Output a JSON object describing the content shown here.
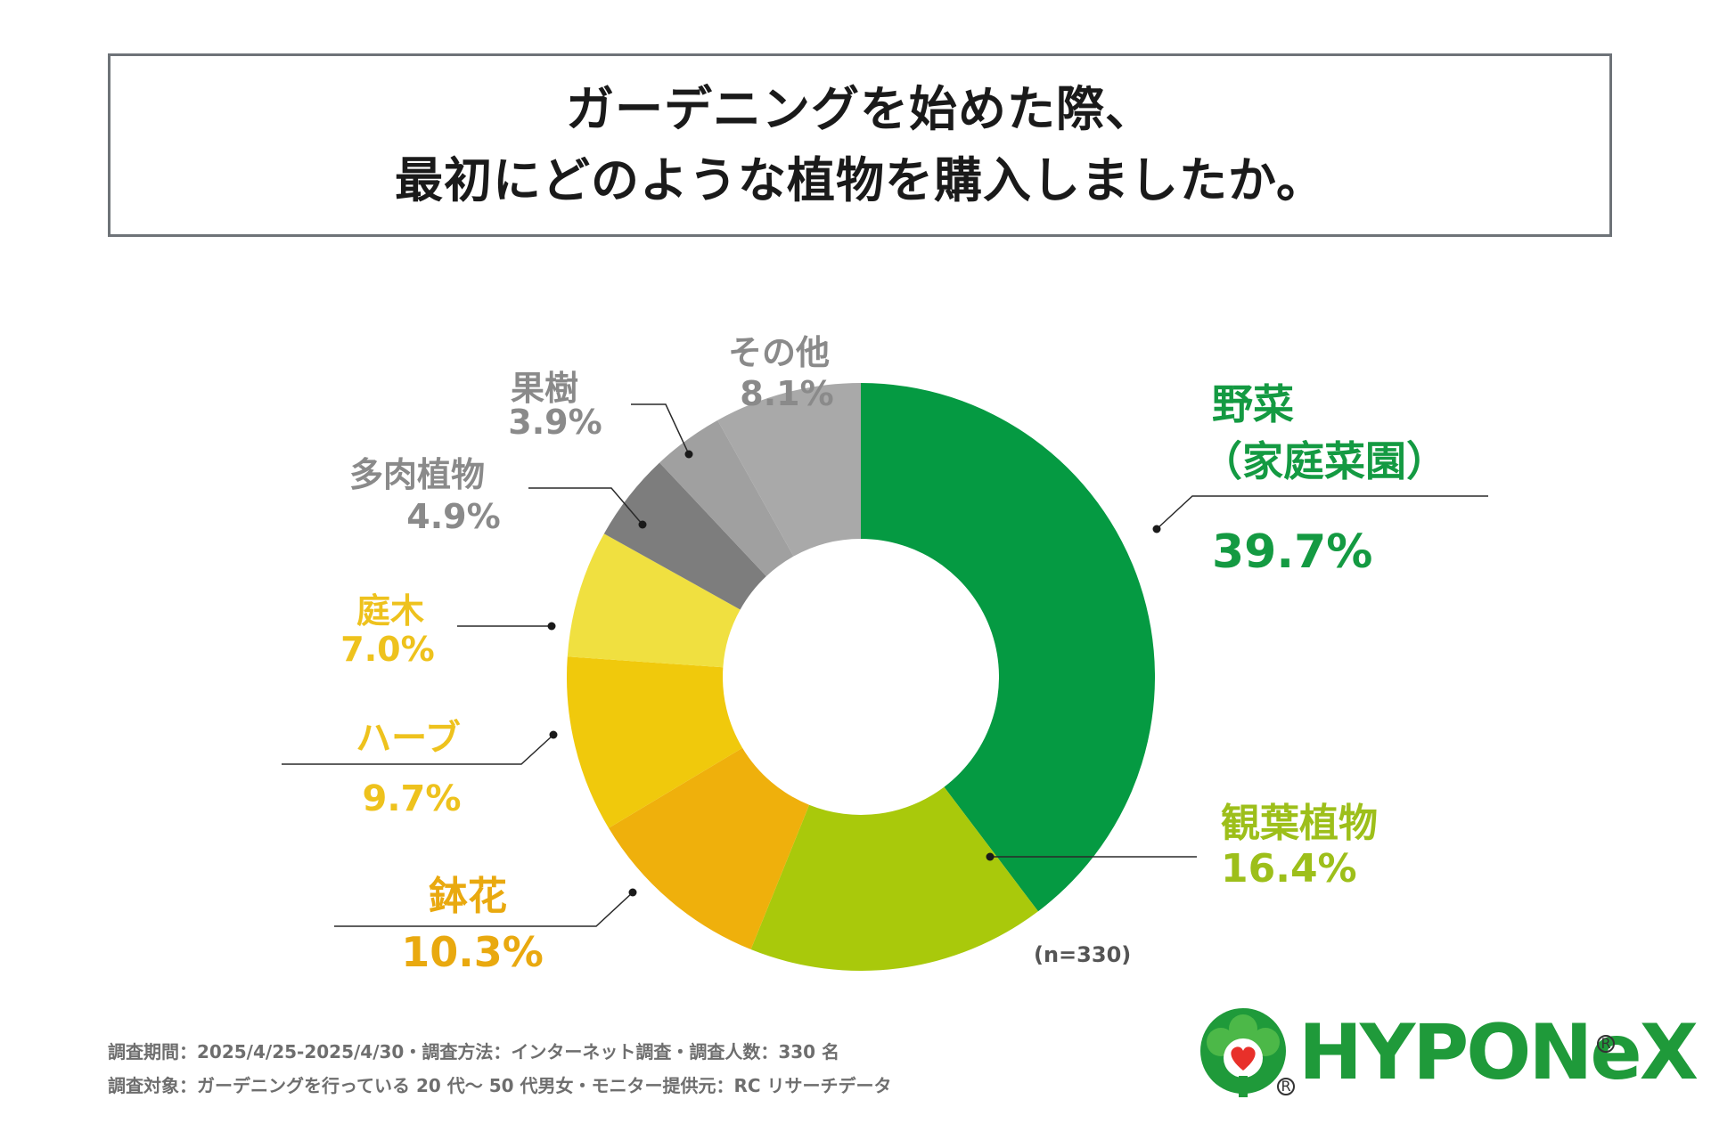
{
  "title": {
    "line1": "ガーデニングを始めた際、",
    "line2": "最初にどのような植物を購入しましたか。"
  },
  "chart_data": {
    "type": "pie",
    "title": "ガーデニングを始めた際、最初にどのような植物を購入しましたか。",
    "unit": "%",
    "slices": [
      {
        "label": "野菜",
        "sublabel": "（家庭菜園）",
        "value": 39.7,
        "value_label": "39.7%",
        "color": "#059a42"
      },
      {
        "label": "観葉植物",
        "value": 16.4,
        "value_label": "16.4%",
        "color": "#a9c90b"
      },
      {
        "label": "鉢花",
        "value": 10.3,
        "value_label": "10.3%",
        "color": "#efb00c"
      },
      {
        "label": "ハーブ",
        "value": 9.7,
        "value_label": "9.7%",
        "color": "#f0c90c"
      },
      {
        "label": "庭木",
        "value": 7.0,
        "value_label": "7.0%",
        "color": "#f0e040"
      },
      {
        "label": "多肉植物",
        "value": 4.9,
        "value_label": "4.9%",
        "color": "#7d7d7d"
      },
      {
        "label": "果樹",
        "value": 3.9,
        "value_label": "3.9%",
        "color": "#a0a0a0"
      },
      {
        "label": "その他",
        "value": 8.1,
        "value_label": "8.1%",
        "color": "#a9a9a9"
      }
    ],
    "label_colors": {
      "green": "#149a42",
      "lime": "#9dbf1a",
      "orange": "#e9a90f",
      "yellow": "#eec21d",
      "gray": "#8a8a8a"
    }
  },
  "sample_note": "(n=330)",
  "footer": {
    "line1": "調査期間：2025/4/25-2025/4/30・調査方法：インターネット調査・調査人数：330 名",
    "line2": "調査対象：ガーデニングを行っている 20 代〜 50 代男女・モニター提供元：RC リサーチデータ"
  },
  "logo": {
    "text": "HYPONeX",
    "registered": "R",
    "brand_color": "#1f9a3a",
    "heart_color": "#e8302a"
  }
}
